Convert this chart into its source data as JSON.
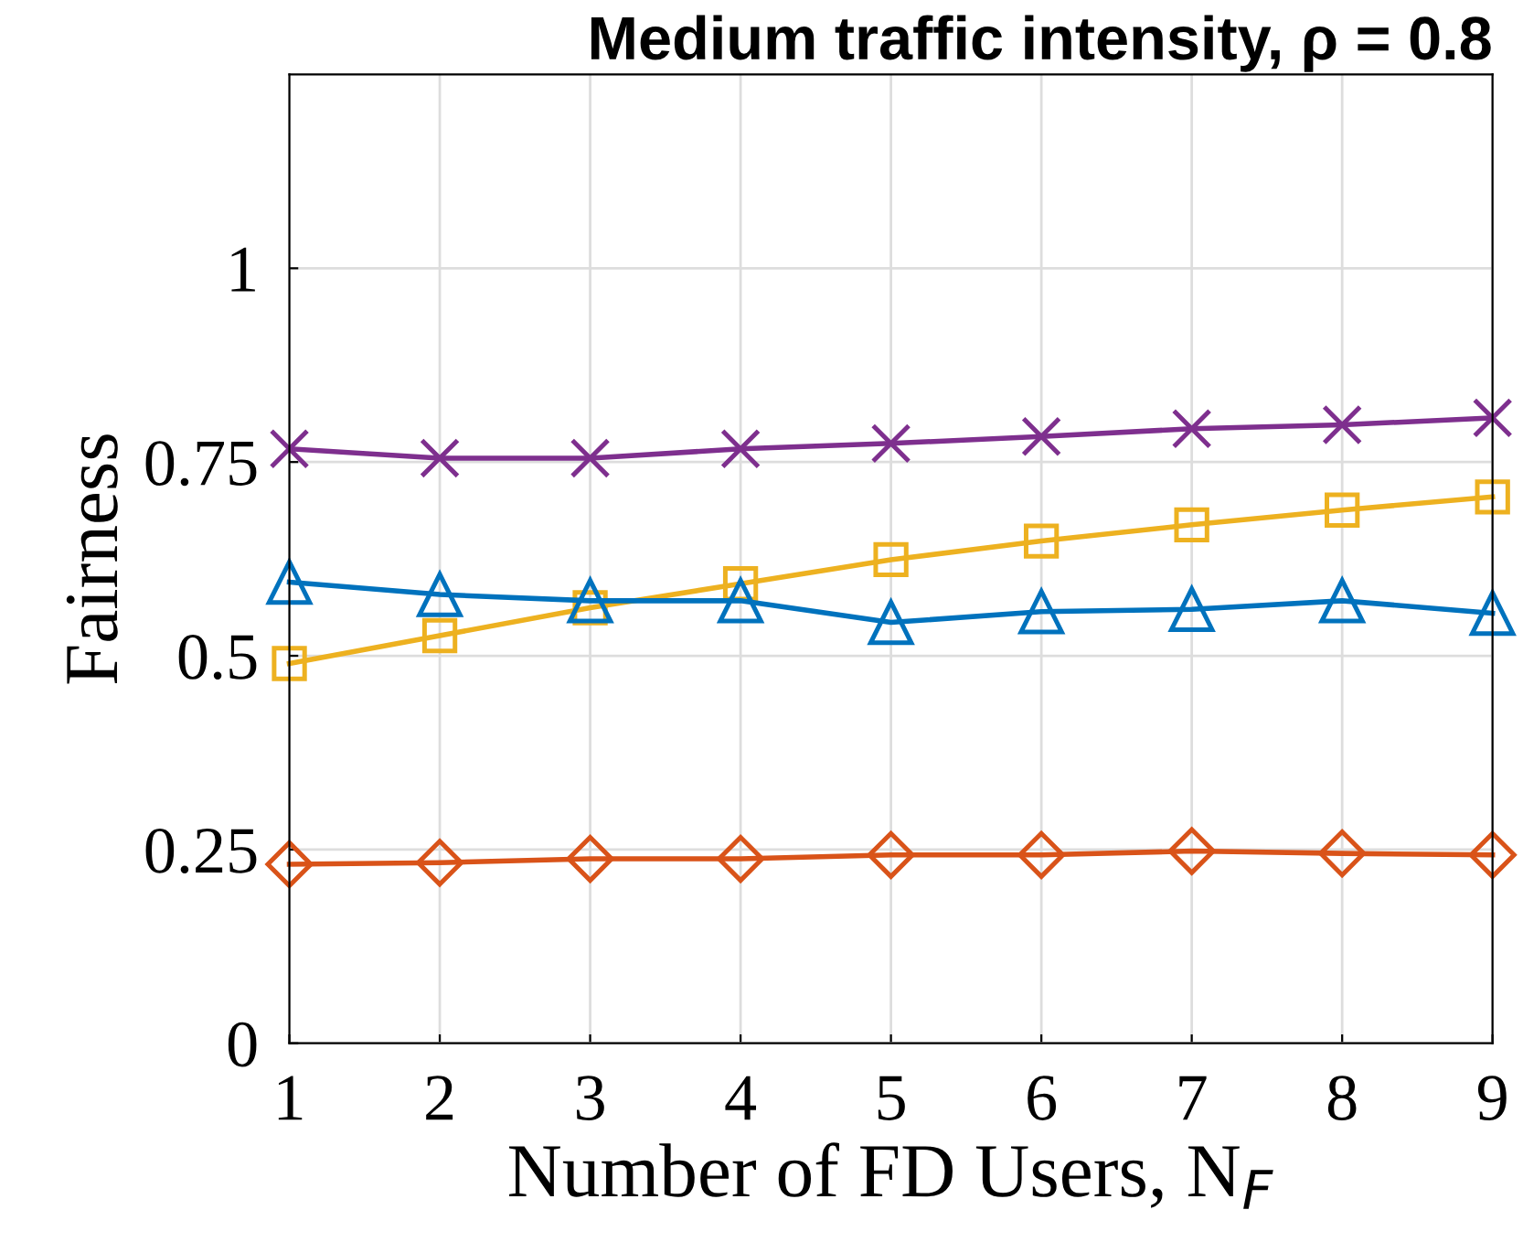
{
  "chart_data": {
    "type": "line",
    "title": "Medium traffic intensity, ρ = 0.8",
    "xlabel": "Number of FD Users, N$_{F}$",
    "ylabel": "Fairness",
    "x": [
      1,
      2,
      3,
      4,
      5,
      6,
      7,
      8,
      9
    ],
    "series": [
      {
        "color": "#7e2f8e",
        "marker": "cross",
        "values": [
          0.767,
          0.755,
          0.755,
          0.767,
          0.774,
          0.783,
          0.793,
          0.798,
          0.807
        ]
      },
      {
        "color": "#edb120",
        "marker": "square",
        "values": [
          0.49,
          0.526,
          0.562,
          0.593,
          0.624,
          0.648,
          0.669,
          0.688,
          0.705
        ]
      },
      {
        "color": "#0072bd",
        "marker": "triangle",
        "values": [
          0.595,
          0.579,
          0.571,
          0.571,
          0.543,
          0.557,
          0.56,
          0.571,
          0.555
        ]
      },
      {
        "color": "#d95319",
        "marker": "diamond",
        "values": [
          0.231,
          0.233,
          0.238,
          0.238,
          0.243,
          0.243,
          0.248,
          0.245,
          0.243
        ]
      }
    ],
    "xlim": [
      1,
      9
    ],
    "xticks": [
      1,
      2,
      3,
      4,
      5,
      6,
      7,
      8,
      9
    ],
    "ylim": [
      0,
      1.25
    ],
    "yticks": [
      0,
      0.25,
      0.5,
      0.75,
      1
    ],
    "grid": true,
    "line_style": "solid"
  }
}
